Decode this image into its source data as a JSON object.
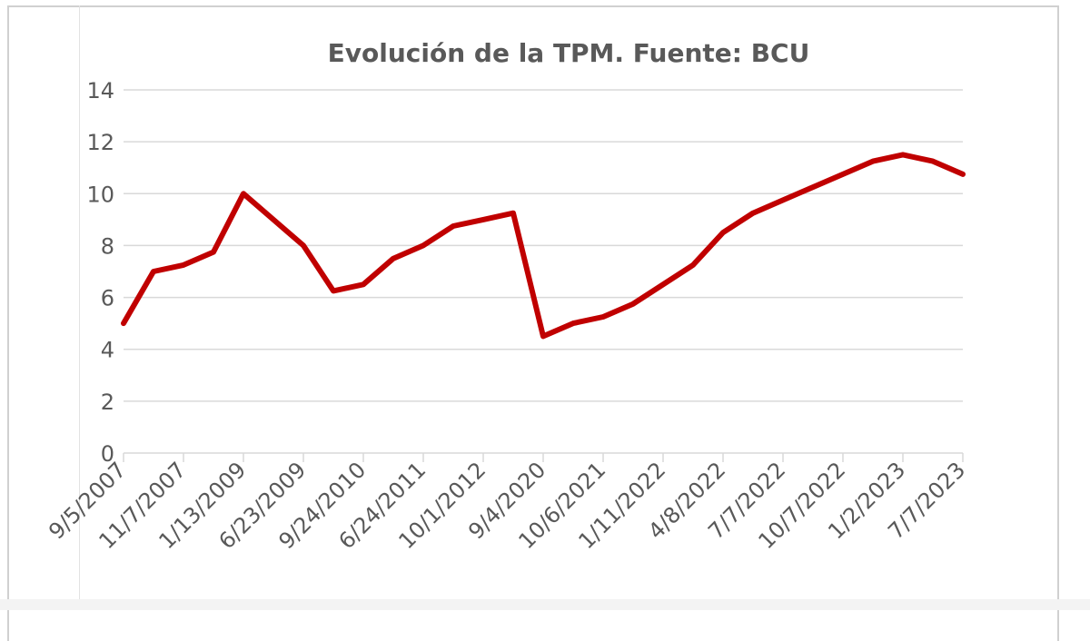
{
  "chart_data": {
    "type": "line",
    "title": "Evolución de la TPM. Fuente: BCU",
    "xlabel": "",
    "ylabel": "",
    "ylim": [
      0,
      14
    ],
    "yticks": [
      0,
      2,
      4,
      6,
      8,
      10,
      12,
      14
    ],
    "grid": true,
    "legend": "none",
    "categories": [
      "9/5/2007",
      "",
      "11/7/2007",
      "",
      "1/13/2009",
      "",
      "6/23/2009",
      "",
      "9/24/2010",
      "",
      "6/24/2011",
      "",
      "10/1/2012",
      "",
      "9/4/2020",
      "",
      "10/6/2021",
      "",
      "1/11/2022",
      "",
      "4/8/2022",
      "",
      "7/7/2022",
      "",
      "10/7/2022",
      "",
      "1/2/2023",
      "",
      "7/7/2023"
    ],
    "series": [
      {
        "color": "#c00000",
        "values": [
          5.0,
          7.0,
          7.25,
          7.75,
          10.0,
          9.0,
          8.0,
          6.25,
          6.5,
          7.5,
          8.0,
          8.75,
          9.0,
          9.25,
          4.5,
          5.0,
          5.25,
          5.75,
          6.5,
          7.25,
          8.5,
          9.25,
          9.75,
          10.25,
          10.75,
          11.25,
          11.5,
          11.25,
          10.75
        ]
      }
    ]
  },
  "colors": {
    "line": "#c00000",
    "gridline": "#d9d9d9",
    "text": "#595959"
  }
}
